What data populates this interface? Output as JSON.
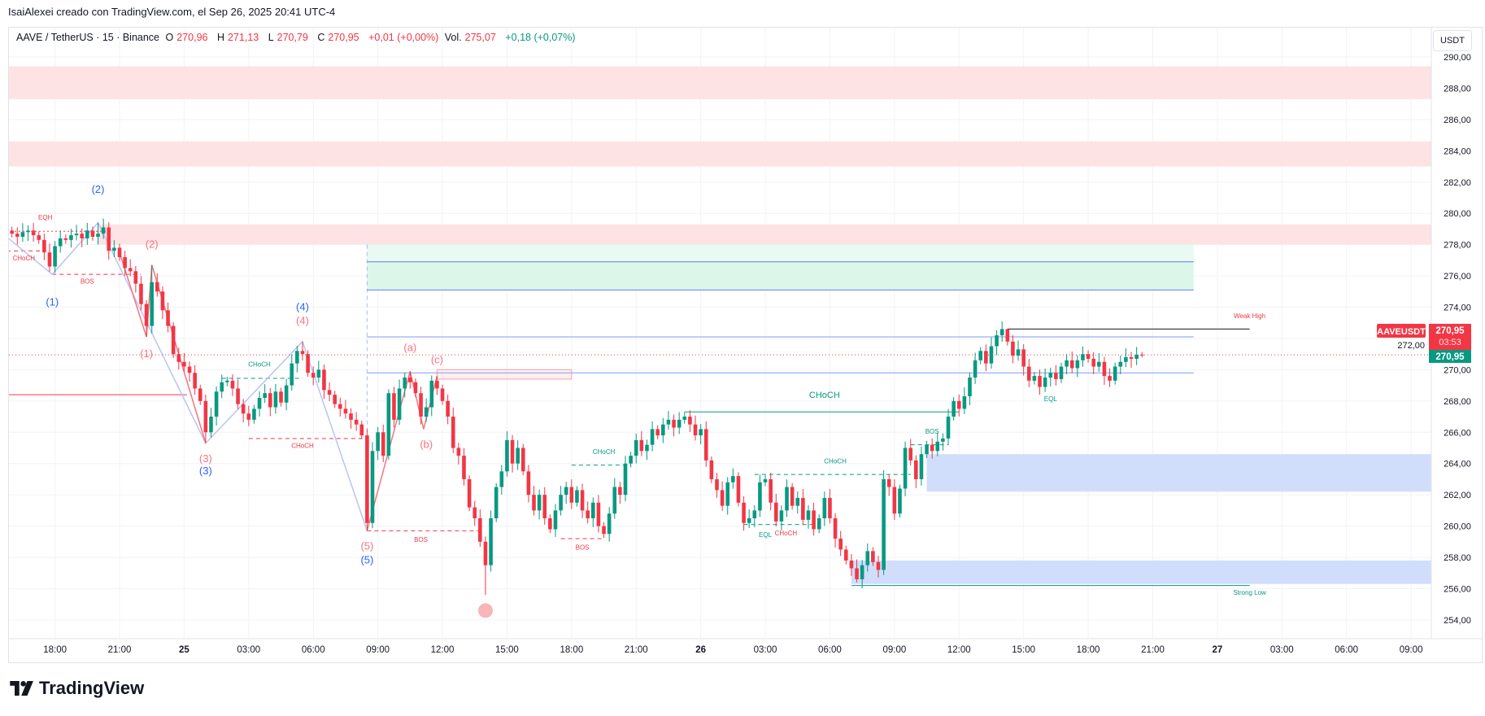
{
  "credit": "IsaiAlexei creado con TradingView.com, el Sep 26, 2025 20:41 UTC-4",
  "legend": {
    "symbol": "AAVE / TetherUS · 15 · Binance",
    "o_label": "O",
    "o": "270,96",
    "h_label": "H",
    "h": "271,13",
    "l_label": "L",
    "l": "270,79",
    "c_label": "C",
    "c": "270,95",
    "change": "+0,01 (+0,00%)",
    "vol_label": "Vol.",
    "vol": "275,07",
    "vol_change": "+0,18 (+0,07%)"
  },
  "unit_button": "USDT",
  "price_tags": {
    "symbol": "AAVEUSDT",
    "last": "270,95",
    "countdown": "03:53",
    "close": "270,95"
  },
  "footer": {
    "logo_text": "TradingView"
  },
  "colors": {
    "up": "#089981",
    "down": "#f23645",
    "wave_blue": "#2962ff",
    "zone_pink": "#fde3e4",
    "zone_blue": "#d0defc",
    "zone_green": "#e6f9ef"
  },
  "chart_data": {
    "type": "candlestick",
    "interval": "15",
    "start": "2025-09-24 16:00",
    "y_ticks": [
      "254,00",
      "256,00",
      "258,00",
      "260,00",
      "262,00",
      "264,00",
      "266,00",
      "268,00",
      "270,00",
      "272,00",
      "274,00",
      "276,00",
      "278,00",
      "280,00",
      "282,00",
      "284,00",
      "286,00",
      "288,00",
      "290,00"
    ],
    "ylim": [
      253,
      291
    ],
    "x_ticks": [
      {
        "i": 8,
        "label": "18:00"
      },
      {
        "i": 20,
        "label": "21:00"
      },
      {
        "i": 32,
        "label": "25",
        "bold": true
      },
      {
        "i": 44,
        "label": "03:00"
      },
      {
        "i": 56,
        "label": "06:00"
      },
      {
        "i": 68,
        "label": "09:00"
      },
      {
        "i": 80,
        "label": "12:00"
      },
      {
        "i": 92,
        "label": "15:00"
      },
      {
        "i": 104,
        "label": "18:00"
      },
      {
        "i": 116,
        "label": "21:00"
      },
      {
        "i": 128,
        "label": "26",
        "bold": true
      },
      {
        "i": 140,
        "label": "03:00"
      },
      {
        "i": 152,
        "label": "06:00"
      },
      {
        "i": 164,
        "label": "09:00"
      },
      {
        "i": 176,
        "label": "12:00"
      },
      {
        "i": 188,
        "label": "15:00"
      },
      {
        "i": 200,
        "label": "18:00"
      },
      {
        "i": 212,
        "label": "21:00"
      },
      {
        "i": 224,
        "label": "27",
        "bold": true
      },
      {
        "i": 236,
        "label": "03:00"
      },
      {
        "i": 248,
        "label": "06:00"
      },
      {
        "i": 260,
        "label": "09:00"
      }
    ],
    "first_open": 278.9,
    "closes": [
      278.7,
      278.5,
      278.8,
      278.9,
      278.6,
      278.3,
      277.5,
      276.6,
      277.9,
      278.4,
      278.3,
      278.6,
      278.7,
      278.4,
      278.9,
      278.5,
      278.7,
      279.1,
      277.6,
      277.8,
      277.2,
      276.5,
      276.3,
      275.5,
      274.2,
      272.8,
      275.6,
      275.0,
      273.8,
      272.8,
      271.0,
      270.5,
      270.2,
      269.8,
      268.8,
      268.0,
      266.0,
      267.0,
      268.6,
      269.2,
      269.3,
      268.8,
      267.8,
      267.2,
      266.8,
      267.5,
      268.2,
      268.5,
      267.6,
      268.6,
      267.9,
      269.0,
      270.4,
      271.2,
      271.0,
      269.8,
      269.5,
      270.0,
      268.7,
      268.4,
      267.8,
      267.5,
      267.2,
      266.8,
      266.5,
      265.8,
      260.2,
      264.8,
      266.0,
      264.5,
      268.5,
      266.8,
      268.8,
      269.5,
      269.2,
      268.5,
      267.0,
      267.6,
      269.3,
      268.8,
      268.0,
      267.0,
      265.0,
      264.5,
      263.0,
      261.2,
      260.5,
      259.0,
      257.5,
      260.5,
      262.5,
      263.5,
      265.5,
      264.0,
      265.0,
      263.5,
      262.0,
      261.0,
      262.0,
      260.5,
      259.8,
      261.0,
      262.0,
      262.5,
      261.5,
      262.3,
      261.0,
      260.5,
      261.5,
      260.0,
      259.5,
      260.8,
      262.5,
      262.0,
      264.0,
      264.5,
      265.5,
      264.8,
      265.2,
      266.2,
      265.8,
      266.5,
      266.8,
      266.3,
      266.8,
      267.0,
      266.5,
      265.8,
      266.2,
      264.2,
      263.0,
      262.3,
      261.3,
      262.8,
      263.2,
      261.5,
      260.2,
      260.5,
      261.0,
      262.8,
      263.0,
      261.5,
      260.3,
      261.0,
      262.5,
      261.3,
      261.8,
      260.4,
      261.0,
      259.8,
      260.5,
      261.8,
      260.5,
      259.2,
      258.5,
      257.8,
      257.3,
      256.6,
      257.5,
      258.4,
      257.7,
      257.2,
      263.0,
      262.5,
      260.8,
      262.4,
      265.0,
      264.2,
      263.0,
      264.6,
      265.2,
      264.8,
      265.4,
      265.6,
      267.0,
      268.0,
      267.5,
      268.3,
      269.5,
      270.6,
      271.2,
      270.4,
      271.5,
      272.2,
      272.6,
      271.8,
      270.9,
      271.3,
      270.2,
      269.3,
      269.6,
      268.9,
      269.5,
      269.8,
      269.4,
      270.2,
      270.6,
      270.1,
      270.6,
      271.0,
      270.7,
      270.2,
      270.5,
      269.6,
      269.3,
      270.2,
      270.5,
      270.8,
      270.7,
      270.96,
      270.95
    ],
    "highs": {
      "16": 279.4,
      "26": 276.7,
      "54": 271.8,
      "74": 269.9,
      "79": 269.6,
      "125": 267.3,
      "185": 272.5,
      "210": 271.13
    },
    "lows": {
      "8": 276.2,
      "25": 272.1,
      "36": 265.3,
      "66": 259.7,
      "88": 255.6,
      "157": 256.4,
      "210": 270.79
    },
    "last_price": 270.95,
    "zones": [
      {
        "kind": "supply",
        "p1": 289.4,
        "p2": 287.3,
        "i1": -2,
        "color": "#fde3e4"
      },
      {
        "kind": "supply",
        "p1": 284.6,
        "p2": 283.0,
        "i1": -2,
        "color": "#fde3e4"
      },
      {
        "kind": "supply",
        "p1": 279.3,
        "p2": 278.0,
        "i1": 16,
        "color": "#fde3e4"
      },
      {
        "kind": "target",
        "p1": 278.0,
        "p2": 276.9,
        "i1": 66,
        "i2": 219.6,
        "color": "#e8faf1"
      },
      {
        "kind": "target",
        "p1": 276.9,
        "p2": 275.1,
        "i1": 66,
        "i2": 219.6,
        "color": "#dcf7e9"
      },
      {
        "kind": "demand",
        "p1": 264.6,
        "p2": 262.2,
        "i1": 170,
        "color": "#d0defc"
      },
      {
        "kind": "demand",
        "p1": 257.8,
        "p2": 256.3,
        "i1": 156,
        "color": "#d0defc"
      }
    ],
    "levels": [
      {
        "p": 276.9,
        "i1": 66,
        "i2": 219.6,
        "color": "#5b7ff0",
        "dash": ""
      },
      {
        "p": 275.1,
        "i1": 66,
        "i2": 219.6,
        "color": "#5b7ff0",
        "dash": ""
      },
      {
        "p": 272.1,
        "i1": 66,
        "i2": 219.6,
        "color": "#7f9cf2",
        "dash": ""
      },
      {
        "p": 269.8,
        "i1": 66,
        "i2": 219.6,
        "color": "#7f9cf2",
        "dash": ""
      },
      {
        "p": 268.4,
        "i1": -1,
        "i2": 32.5,
        "color": "#f23645",
        "dash": ""
      },
      {
        "p": 278.85,
        "i1": -1,
        "i2": 17.5,
        "color": "#f23645",
        "dash": "2,3"
      },
      {
        "p": 277.6,
        "i1": -1,
        "i2": 6,
        "color": "#f23645",
        "dash": "5,4"
      },
      {
        "p": 276.1,
        "i1": 7.5,
        "i2": 24,
        "color": "#f23645",
        "dash": "5,4"
      },
      {
        "p": 269.45,
        "i1": 39,
        "i2": 54,
        "color": "#089981",
        "dash": "5,4"
      },
      {
        "p": 265.6,
        "i1": 44,
        "i2": 65,
        "color": "#f23645",
        "dash": "5,4"
      },
      {
        "p": 259.7,
        "i1": 66,
        "i2": 87,
        "color": "#f23645",
        "dash": "5,4"
      },
      {
        "p": 259.2,
        "i1": 102,
        "i2": 110,
        "color": "#f23645",
        "dash": "5,4"
      },
      {
        "p": 263.9,
        "i1": 104,
        "i2": 115,
        "color": "#089981",
        "dash": "5,4"
      },
      {
        "p": 267.3,
        "i1": 125,
        "i2": 176,
        "color": "#089981",
        "dash": ""
      },
      {
        "p": 263.3,
        "i1": 138,
        "i2": 167,
        "color": "#089981",
        "dash": "5,4"
      },
      {
        "p": 260.1,
        "i1": 136,
        "i2": 149,
        "color": "#089981",
        "dash": "5,4"
      },
      {
        "p": 265.2,
        "i1": 167,
        "i2": 174,
        "color": "#089981",
        "dash": "5,4"
      },
      {
        "p": 272.6,
        "i1": 185,
        "i2": 230,
        "color": "#131722",
        "dash": ""
      },
      {
        "p": 256.2,
        "i1": 156,
        "i2": 230,
        "color": "#089981",
        "dash": ""
      }
    ],
    "waves": [
      {
        "color": "#b8c4f5",
        "points": [
          [
            -1,
            278.5
          ],
          [
            7.5,
            276.1
          ],
          [
            16,
            279.4
          ],
          [
            36,
            265.3
          ],
          [
            54,
            271.8
          ],
          [
            66,
            259.7
          ]
        ]
      },
      {
        "color": "#f7737f",
        "points": [
          [
            20,
            277.5
          ],
          [
            25,
            272.1
          ],
          [
            26,
            276.7
          ],
          [
            36,
            265.3
          ]
        ]
      },
      {
        "color": "#f7737f",
        "points": [
          [
            66,
            259.7
          ],
          [
            74,
            269.9
          ],
          [
            76.5,
            266.2
          ],
          [
            79,
            269.6
          ]
        ]
      }
    ],
    "annotations": [
      {
        "text": "EQH",
        "i": 6.2,
        "p": 279.6,
        "color": "#f23645",
        "size": 8
      },
      {
        "text": "CHoCH",
        "i": 2.2,
        "p": 277.0,
        "color": "#f23645",
        "size": 8
      },
      {
        "text": "BOS",
        "i": 14,
        "p": 275.5,
        "color": "#f23645",
        "size": 8
      },
      {
        "text": "(2)",
        "i": 16,
        "p": 281.3,
        "color": "#2962ff",
        "size": 13
      },
      {
        "text": "(1)",
        "i": 7.5,
        "p": 274.1,
        "color": "#2962ff",
        "size": 13
      },
      {
        "text": "(2)",
        "i": 26,
        "p": 277.8,
        "color": "#f7737f",
        "size": 13
      },
      {
        "text": "(1)",
        "i": 25,
        "p": 270.8,
        "color": "#f7737f",
        "size": 13
      },
      {
        "text": "(4)",
        "i": 54,
        "p": 273.8,
        "color": "#2962ff",
        "size": 13
      },
      {
        "text": "(4)",
        "i": 54,
        "p": 272.9,
        "color": "#f7737f",
        "size": 13
      },
      {
        "text": "CHoCH",
        "i": 46,
        "p": 270.2,
        "color": "#089981",
        "size": 8
      },
      {
        "text": "(3)",
        "i": 36,
        "p": 264.1,
        "color": "#f7737f",
        "size": 13
      },
      {
        "text": "(3)",
        "i": 36,
        "p": 263.3,
        "color": "#2962ff",
        "size": 13
      },
      {
        "text": "CHoCH",
        "i": 54,
        "p": 265.0,
        "color": "#f23645",
        "size": 8
      },
      {
        "text": "(a)",
        "i": 74,
        "p": 271.2,
        "color": "#f7737f",
        "size": 13
      },
      {
        "text": "(c)",
        "i": 79,
        "p": 270.4,
        "color": "#f7737f",
        "size": 13
      },
      {
        "text": "(b)",
        "i": 77,
        "p": 265.0,
        "color": "#f7737f",
        "size": 13
      },
      {
        "text": "(5)",
        "i": 66,
        "p": 258.5,
        "color": "#f7737f",
        "size": 13
      },
      {
        "text": "(5)",
        "i": 66,
        "p": 257.6,
        "color": "#2962ff",
        "size": 13
      },
      {
        "text": "BOS",
        "i": 76,
        "p": 259.0,
        "color": "#f23645",
        "size": 8
      },
      {
        "text": "CHoCH",
        "i": 110,
        "p": 264.6,
        "color": "#089981",
        "size": 8
      },
      {
        "text": "BOS",
        "i": 106,
        "p": 258.5,
        "color": "#f23645",
        "size": 8
      },
      {
        "text": "CHoCH",
        "i": 151,
        "p": 268.2,
        "color": "#089981",
        "size": 11
      },
      {
        "text": "CHoCH",
        "i": 153,
        "p": 264.0,
        "color": "#089981",
        "size": 8
      },
      {
        "text": "EQL",
        "i": 140,
        "p": 259.3,
        "color": "#089981",
        "size": 8
      },
      {
        "text": "CHoCH",
        "i": 142.5,
        "p": 259.4,
        "color": "#f23645",
        "size": 8
      },
      {
        "text": "BOS",
        "i": 171,
        "p": 265.9,
        "color": "#089981",
        "size": 8
      },
      {
        "text": "EQL",
        "i": 193,
        "p": 268.0,
        "color": "#089981",
        "size": 8
      },
      {
        "text": "Weak High",
        "i": 230,
        "p": 273.3,
        "color": "#f23645",
        "size": 8
      },
      {
        "text": "Strong Low",
        "i": 230,
        "p": 255.6,
        "color": "#089981",
        "size": 8
      }
    ],
    "marker": {
      "i": 88,
      "p": 254.6,
      "color": "#f9b5b8"
    }
  }
}
